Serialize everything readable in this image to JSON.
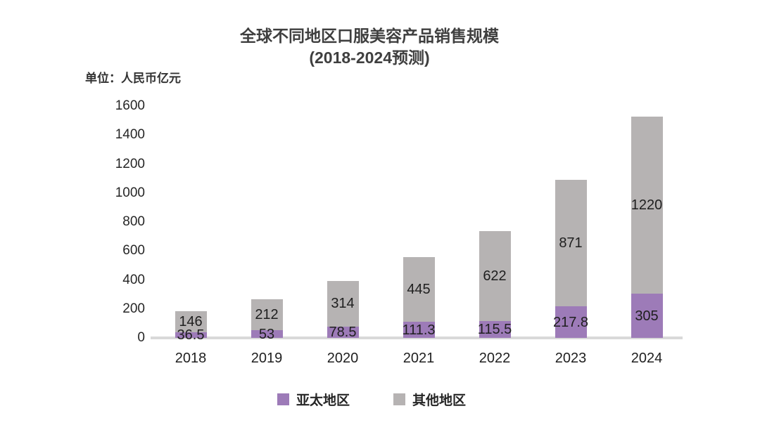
{
  "chart_data": {
    "type": "bar",
    "stacked": true,
    "title_line1": "全球不同地区口服美容产品销售规模",
    "title_line2": "(2018-2024预测)",
    "unit_label": "单位：人民币亿元",
    "categories": [
      "2018",
      "2019",
      "2020",
      "2021",
      "2022",
      "2023",
      "2024"
    ],
    "series": [
      {
        "name": "亚太地区",
        "color": "#9d7bb8",
        "values": [
          36.5,
          53,
          78.5,
          111.3,
          115.5,
          217.8,
          305
        ]
      },
      {
        "name": "其他地区",
        "color": "#b6b3b3",
        "values": [
          146,
          212,
          314,
          445,
          622,
          871,
          1220
        ]
      }
    ],
    "ylim": [
      0,
      1600
    ],
    "yticks": [
      0,
      200,
      400,
      600,
      800,
      1000,
      1200,
      1400,
      1600
    ],
    "grid": false,
    "legend_position": "bottom",
    "axis_line_color": "#d9d9d9",
    "text_color": "#262626"
  }
}
